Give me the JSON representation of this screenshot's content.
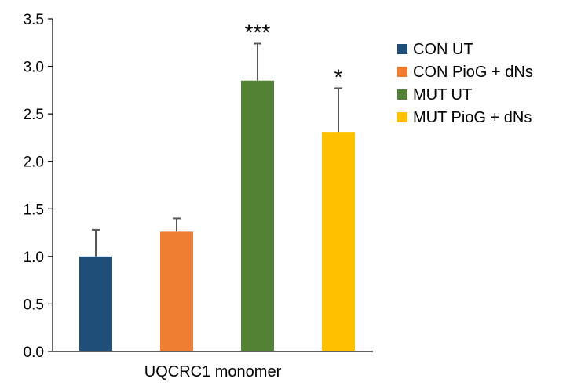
{
  "chart_data": {
    "type": "bar",
    "categories": [
      "UQCRC1 monomer"
    ],
    "ylim": [
      0,
      3.5
    ],
    "yticks": [
      "0.0",
      "0.5",
      "1.0",
      "1.5",
      "2.0",
      "2.5",
      "3.0",
      "3.5"
    ],
    "grid": false,
    "legend_position": "right",
    "series": [
      {
        "name": "CON UT",
        "values": [
          1.0
        ],
        "error": [
          0.28
        ],
        "color": "#1f4e79",
        "annotation": ""
      },
      {
        "name": "CON PioG + dNs",
        "values": [
          1.26
        ],
        "error": [
          0.14
        ],
        "color": "#ed7d31",
        "annotation": ""
      },
      {
        "name": "MUT UT",
        "values": [
          2.85
        ],
        "error": [
          0.39
        ],
        "color": "#548235",
        "annotation": "***"
      },
      {
        "name": "MUT PioG + dNs",
        "values": [
          2.31
        ],
        "error": [
          0.46
        ],
        "color": "#ffc000",
        "annotation": "*"
      }
    ],
    "title": "",
    "xlabel": "",
    "ylabel": ""
  }
}
